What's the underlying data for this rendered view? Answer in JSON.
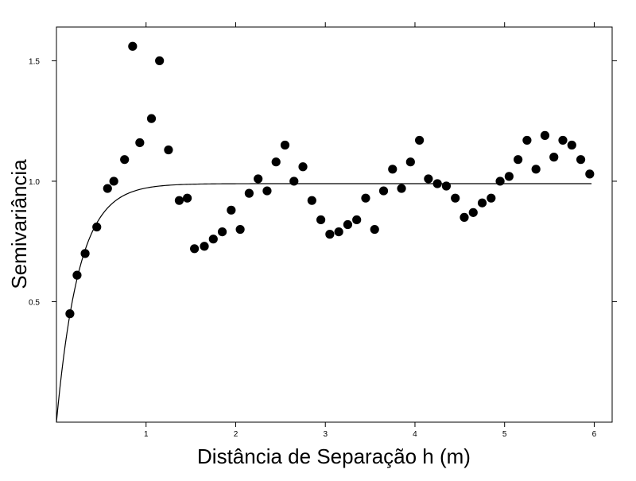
{
  "chart_data": {
    "type": "scatter",
    "title": "",
    "xlabel": "Distância de Separação h (m)",
    "ylabel": "Semivariância",
    "xlim": [
      0,
      6.2
    ],
    "ylim": [
      0,
      1.64
    ],
    "x_ticks": [
      1,
      2,
      3,
      4,
      5,
      6
    ],
    "y_ticks": [
      0.5,
      1.0,
      1.5
    ],
    "x_tick_labels": [
      "1",
      "2",
      "3",
      "4",
      "5",
      "6"
    ],
    "y_tick_labels": [
      "0.5",
      "1.0",
      "1.5"
    ],
    "grid": false,
    "point_color": "#000000",
    "line_color": "#000000",
    "series": [
      {
        "kind": "points",
        "points": [
          [
            0.15,
            0.45
          ],
          [
            0.23,
            0.61
          ],
          [
            0.32,
            0.7
          ],
          [
            0.45,
            0.81
          ],
          [
            0.57,
            0.97
          ],
          [
            0.64,
            1.0
          ],
          [
            0.76,
            1.09
          ],
          [
            0.85,
            1.56
          ],
          [
            0.93,
            1.16
          ],
          [
            1.06,
            1.26
          ],
          [
            1.15,
            1.5
          ],
          [
            1.25,
            1.13
          ],
          [
            1.37,
            0.92
          ],
          [
            1.46,
            0.93
          ],
          [
            1.54,
            0.72
          ],
          [
            1.65,
            0.73
          ],
          [
            1.75,
            0.76
          ],
          [
            1.85,
            0.79
          ],
          [
            1.95,
            0.88
          ],
          [
            2.05,
            0.8
          ],
          [
            2.15,
            0.95
          ],
          [
            2.25,
            1.01
          ],
          [
            2.35,
            0.96
          ],
          [
            2.45,
            1.08
          ],
          [
            2.55,
            1.15
          ],
          [
            2.65,
            1.0
          ],
          [
            2.75,
            1.06
          ],
          [
            2.85,
            0.92
          ],
          [
            2.95,
            0.84
          ],
          [
            3.05,
            0.78
          ],
          [
            3.15,
            0.79
          ],
          [
            3.25,
            0.82
          ],
          [
            3.35,
            0.84
          ],
          [
            3.45,
            0.93
          ],
          [
            3.55,
            0.8
          ],
          [
            3.65,
            0.96
          ],
          [
            3.75,
            1.05
          ],
          [
            3.85,
            0.97
          ],
          [
            3.95,
            1.08
          ],
          [
            4.05,
            1.17
          ],
          [
            4.15,
            1.01
          ],
          [
            4.25,
            0.99
          ],
          [
            4.35,
            0.98
          ],
          [
            4.45,
            0.93
          ],
          [
            4.55,
            0.85
          ],
          [
            4.65,
            0.87
          ],
          [
            4.75,
            0.91
          ],
          [
            4.85,
            0.93
          ],
          [
            4.95,
            1.0
          ],
          [
            5.05,
            1.02
          ],
          [
            5.15,
            1.09
          ],
          [
            5.25,
            1.17
          ],
          [
            5.35,
            1.05
          ],
          [
            5.45,
            1.19
          ],
          [
            5.55,
            1.1
          ],
          [
            5.65,
            1.17
          ],
          [
            5.75,
            1.15
          ],
          [
            5.85,
            1.09
          ],
          [
            5.95,
            1.03
          ]
        ]
      },
      {
        "kind": "fitted-curve",
        "model": "exponential",
        "nugget": 0,
        "sill": 0.99,
        "range": 0.75,
        "x_range": [
          0,
          5.97
        ]
      }
    ]
  }
}
